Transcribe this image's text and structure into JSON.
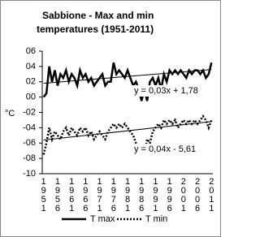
{
  "chart_data": {
    "type": "line",
    "title": [
      "Sabbione - Max and min",
      "temperatures (1951-2011)"
    ],
    "y_label": "°C",
    "categories": [
      "1951",
      null,
      null,
      null,
      null,
      "1956",
      null,
      null,
      null,
      null,
      "1961",
      null,
      null,
      null,
      null,
      "1966",
      null,
      null,
      null,
      null,
      "1971",
      null,
      null,
      null,
      null,
      "1976",
      null,
      null,
      null,
      null,
      "1981",
      null,
      null,
      null,
      null,
      "1986",
      null,
      null,
      null,
      null,
      "1991",
      null,
      null,
      null,
      null,
      "1996",
      null,
      null,
      null,
      null,
      "2001",
      null,
      null,
      null,
      null,
      "2006",
      null,
      null,
      null,
      null,
      "2011"
    ],
    "ylim": [
      -10,
      6
    ],
    "yticks": [
      {
        "value": 6,
        "label": "06"
      },
      {
        "value": 4,
        "label": "04"
      },
      {
        "value": 2,
        "label": "02"
      },
      {
        "value": 0,
        "label": "00"
      },
      {
        "value": -2,
        "label": "-02"
      },
      {
        "value": -4,
        "label": "-04"
      },
      {
        "value": -6,
        "label": "-06"
      },
      {
        "value": -8,
        "label": "-08"
      },
      {
        "value": -10,
        "label": "-10"
      }
    ],
    "series": [
      {
        "name": "T max",
        "color": "#000000",
        "dash": "solid",
        "values": [
          0,
          0.5,
          4,
          2,
          3.5,
          1.5,
          3,
          2.5,
          3.5,
          2,
          3,
          2.5,
          1.5,
          3.5,
          2.5,
          3,
          2,
          2.5,
          1.5,
          2,
          2.5,
          3,
          1.5,
          2,
          2,
          4.5,
          3,
          3.5,
          3,
          2.5,
          3.5,
          2.5,
          1.5,
          2,
          1,
          -0.5,
          1,
          -0.5,
          2,
          2.5,
          1.5,
          2.5,
          1,
          3,
          2,
          3.5,
          3,
          3.5,
          3,
          3.5,
          3,
          2.5,
          3.5,
          3,
          3.5,
          3.5,
          3,
          3.5,
          2.5,
          3,
          4.5
        ],
        "trendline": [
          1.8,
          3.6
        ],
        "trend_label": "y = 0,03x + 1,78"
      },
      {
        "name": "T min",
        "color": "#000000",
        "dash": "dotted",
        "values": [
          -7.5,
          -6,
          -4,
          -5.5,
          -4.5,
          -5,
          -5.5,
          -4.5,
          -4,
          -5,
          -4,
          -4.5,
          -5,
          -4,
          -4.5,
          -4,
          -5,
          -4.5,
          -5.5,
          -5,
          -4.5,
          -5,
          -5.5,
          -4.5,
          -4,
          -3.5,
          -4,
          -3.5,
          -4,
          -3.5,
          -4,
          -4.5,
          -5,
          -6,
          -7,
          -6.5,
          -7.5,
          -5.5,
          -6,
          -4.5,
          -4,
          -3.5,
          -4,
          -3,
          -3.5,
          -3,
          -3.5,
          -3,
          -4,
          -3.5,
          -3,
          -3.5,
          -3,
          -3.5,
          -3,
          -3.5,
          -3,
          -2.5,
          -3,
          -4,
          -3
        ],
        "trendline": [
          -5.6,
          -3.2
        ],
        "trend_label": "y = 0,04x - 5,61"
      }
    ],
    "legend": "bottom"
  }
}
